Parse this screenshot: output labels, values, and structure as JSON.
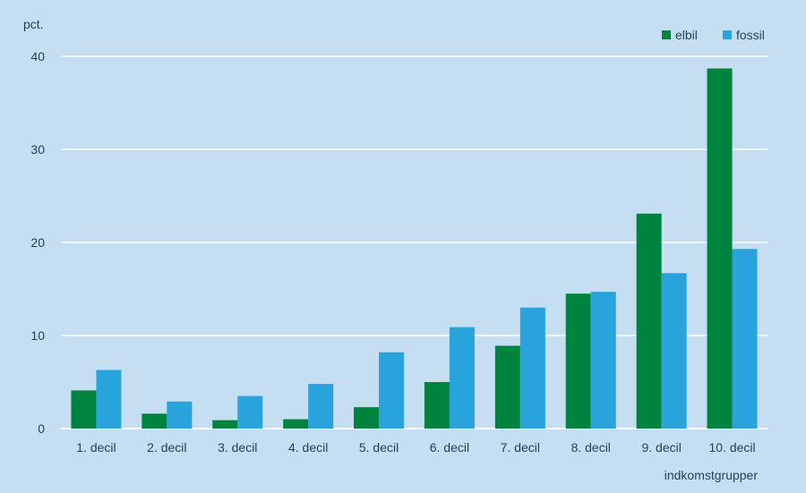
{
  "chart_data": {
    "type": "bar",
    "ylabel": "pct.",
    "xlabel": "indkomstgrupper",
    "ylim": [
      0,
      40
    ],
    "yticks": [
      0,
      10,
      20,
      30,
      40
    ],
    "grid": true,
    "legend_position": "top-right",
    "categories": [
      "1. decil",
      "2. decil",
      "3. decil",
      "4. decil",
      "5. decil",
      "6. decil",
      "7. decil",
      "8. decil",
      "9. decil",
      "10. decil"
    ],
    "series": [
      {
        "name": "elbil",
        "color": "#00843d",
        "values": [
          4.1,
          1.6,
          0.9,
          1.0,
          2.3,
          5.0,
          8.9,
          14.5,
          23.1,
          38.7
        ]
      },
      {
        "name": "fossil",
        "color": "#29a3dc",
        "values": [
          6.3,
          2.9,
          3.5,
          4.8,
          8.2,
          10.9,
          13.0,
          14.7,
          16.7,
          19.3
        ]
      }
    ]
  }
}
